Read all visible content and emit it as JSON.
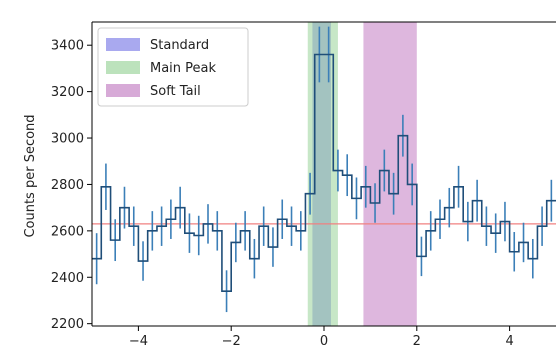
{
  "chart_data": {
    "type": "line",
    "title": "",
    "xlabel": "",
    "ylabel": "Counts per Second",
    "xlim": [
      -5,
      5
    ],
    "ylim": [
      2190,
      3500
    ],
    "xticks": [
      -4,
      -2,
      0,
      2,
      4
    ],
    "yticks": [
      2200,
      2400,
      2600,
      2800,
      3000,
      3200,
      3400
    ],
    "grid": false,
    "legend_position": "top-left",
    "reference_line": {
      "y": 2630,
      "color": "#f08080"
    },
    "series": [
      {
        "style": "step",
        "color": "#1f4e79",
        "error_color": "#3b7fb8",
        "bin_width": 0.2,
        "x": [
          -4.9,
          -4.7,
          -4.5,
          -4.3,
          -4.1,
          -3.9,
          -3.7,
          -3.5,
          -3.3,
          -3.1,
          -2.9,
          -2.7,
          -2.5,
          -2.3,
          -2.1,
          -1.9,
          -1.7,
          -1.5,
          -1.3,
          -1.1,
          -0.9,
          -0.7,
          -0.5,
          -0.3,
          -0.1,
          0.1,
          0.3,
          0.5,
          0.7,
          0.9,
          1.1,
          1.3,
          1.5,
          1.7,
          1.9,
          2.1,
          2.3,
          2.5,
          2.7,
          2.9,
          3.1,
          3.3,
          3.5,
          3.7,
          3.9,
          4.1,
          4.3,
          4.5,
          4.7,
          4.9
        ],
        "y": [
          2480,
          2790,
          2560,
          2700,
          2620,
          2470,
          2600,
          2620,
          2650,
          2700,
          2590,
          2580,
          2630,
          2600,
          2340,
          2550,
          2600,
          2480,
          2620,
          2530,
          2650,
          2620,
          2600,
          2760,
          3360,
          3360,
          2860,
          2840,
          2740,
          2790,
          2720,
          2860,
          2760,
          3010,
          2800,
          2490,
          2600,
          2650,
          2700,
          2790,
          2640,
          2730,
          2620,
          2590,
          2640,
          2510,
          2550,
          2480,
          2620,
          2730
        ],
        "error": [
          110,
          100,
          90,
          90,
          85,
          85,
          85,
          85,
          85,
          90,
          85,
          85,
          85,
          85,
          90,
          85,
          85,
          85,
          85,
          85,
          85,
          85,
          85,
          90,
          120,
          120,
          90,
          90,
          90,
          90,
          85,
          90,
          90,
          90,
          90,
          85,
          85,
          85,
          85,
          90,
          85,
          90,
          85,
          85,
          85,
          85,
          85,
          85,
          85,
          90
        ]
      }
    ],
    "bands": [
      {
        "name": "Standard",
        "x": [
          -0.25,
          0.15
        ],
        "color": "#7b7be6",
        "opacity": 0.55
      },
      {
        "name": "Main Peak",
        "x": [
          -0.35,
          0.3
        ],
        "color": "#8fcf8f",
        "opacity": 0.5
      },
      {
        "name": "Soft Tail",
        "x": [
          0.85,
          2.0
        ],
        "color": "#c27cc2",
        "opacity": 0.55
      }
    ]
  }
}
